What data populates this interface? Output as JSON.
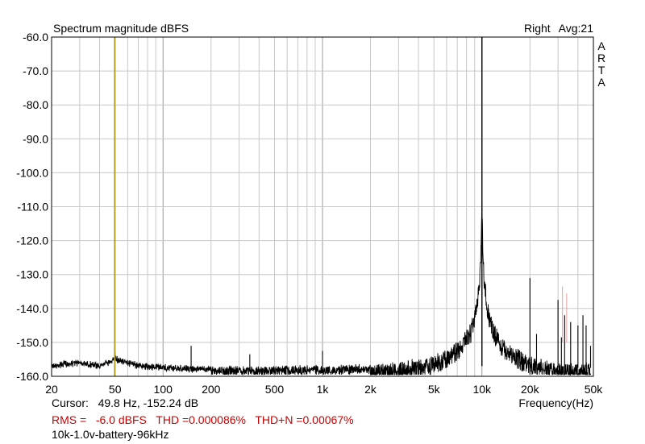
{
  "chart_data": {
    "type": "line",
    "title": "Spectrum magnitude dBFS",
    "channel_label": "Right",
    "avg_label": "Avg:21",
    "watermark": [
      "A",
      "R",
      "T",
      "A"
    ],
    "xlabel": "Frequency(Hz)",
    "ylabel": "",
    "x_scale": "log",
    "xlim": [
      20,
      50000
    ],
    "ylim": [
      -160,
      -60
    ],
    "grid": true,
    "x_ticks": [
      {
        "v": 20,
        "label": "20"
      },
      {
        "v": 50,
        "label": "50"
      },
      {
        "v": 100,
        "label": "100"
      },
      {
        "v": 200,
        "label": "200"
      },
      {
        "v": 500,
        "label": "500"
      },
      {
        "v": 1000,
        "label": "1k"
      },
      {
        "v": 2000,
        "label": "2k"
      },
      {
        "v": 5000,
        "label": "5k"
      },
      {
        "v": 10000,
        "label": "10k"
      },
      {
        "v": 20000,
        "label": "20k"
      },
      {
        "v": 50000,
        "label": "50k"
      }
    ],
    "y_ticks": [
      {
        "v": -60,
        "label": "-60.0"
      },
      {
        "v": -70,
        "label": "-70.0"
      },
      {
        "v": -80,
        "label": "-80.0"
      },
      {
        "v": -90,
        "label": "-90.0"
      },
      {
        "v": -100,
        "label": "-100.0"
      },
      {
        "v": -110,
        "label": "-110.0"
      },
      {
        "v": -120,
        "label": "-120.0"
      },
      {
        "v": -130,
        "label": "-130.0"
      },
      {
        "v": -140,
        "label": "-140.0"
      },
      {
        "v": -150,
        "label": "-150.0"
      },
      {
        "v": -160,
        "label": "-160.0"
      }
    ],
    "cursor_x": 49.8,
    "colors": {
      "trace": "#000000",
      "cursor": "#b5a020",
      "grid": "#c8c8c8",
      "harmonic_marker": "#e8a0a0"
    },
    "spectrum": {
      "fundamental_hz": 10000,
      "peak_db": -108,
      "floor_db": -157,
      "skirt_points": [
        [
          20,
          -156.5
        ],
        [
          30,
          -155.5
        ],
        [
          40,
          -156.5
        ],
        [
          50,
          -154.5
        ],
        [
          70,
          -156.5
        ],
        [
          100,
          -157
        ],
        [
          150,
          -157.5
        ],
        [
          200,
          -157.5
        ],
        [
          300,
          -157.5
        ],
        [
          500,
          -157.5
        ],
        [
          1000,
          -157.3
        ],
        [
          2000,
          -157
        ],
        [
          3000,
          -156.3
        ],
        [
          5000,
          -154.5
        ],
        [
          7000,
          -150.5
        ],
        [
          8500,
          -145
        ],
        [
          9300,
          -138
        ],
        [
          9700,
          -129
        ],
        [
          9900,
          -118
        ],
        [
          10000,
          -108
        ],
        [
          10100,
          -118
        ],
        [
          10300,
          -129
        ],
        [
          10800,
          -138
        ],
        [
          11800,
          -145
        ],
        [
          14000,
          -150.5
        ],
        [
          20000,
          -154.5
        ],
        [
          30000,
          -156.5
        ],
        [
          48000,
          -156.5
        ]
      ],
      "line_peaks": [
        [
          50,
          -153
        ],
        [
          150,
          -151
        ],
        [
          350,
          -153.5
        ],
        [
          1000,
          -152.5
        ],
        [
          20000,
          -131
        ],
        [
          22000,
          -147.5
        ],
        [
          30000,
          -137.5
        ],
        [
          31500,
          -148.5
        ],
        [
          33000,
          -142
        ],
        [
          36000,
          -144
        ],
        [
          40000,
          -145
        ],
        [
          43000,
          -142
        ],
        [
          45000,
          -145
        ],
        [
          48000,
          -151
        ]
      ],
      "harmonic_markers": [
        [
          32000,
          -133.5
        ],
        [
          34000,
          -135.5
        ]
      ]
    }
  },
  "cursor_readout": "Cursor:   49.8 Hz, -152.24 dB",
  "rms_line": "RMS =   -6.0 dBFS   THD =0.000086%   THD+N =0.00067%",
  "file_name": "10k-1.0v-battery-96kHz"
}
